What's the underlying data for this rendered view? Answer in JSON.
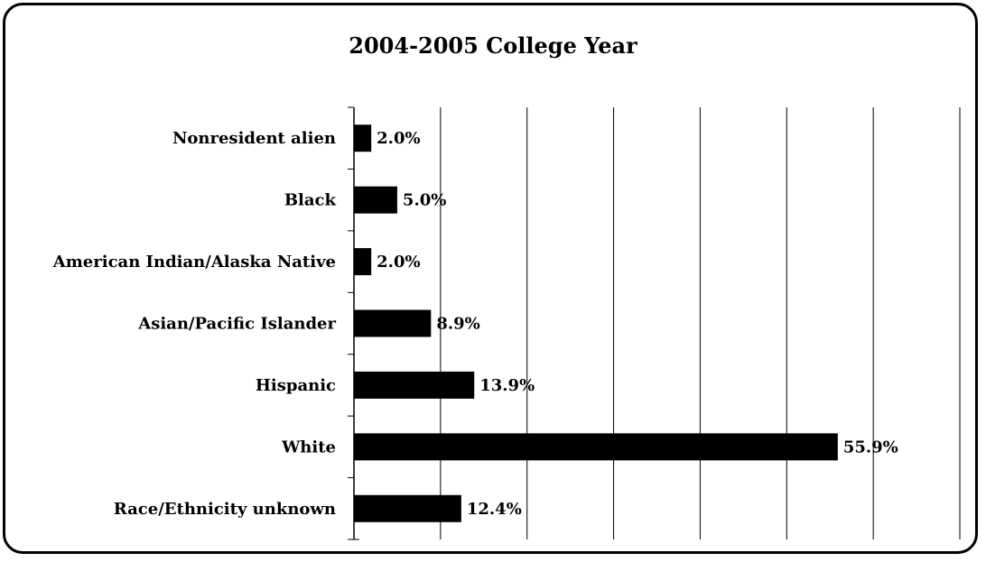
{
  "chart_data": {
    "type": "bar",
    "orientation": "horizontal",
    "title": "2004-2005 College Year",
    "categories": [
      "Nonresident alien",
      "Black",
      "American Indian/Alaska Native",
      "Asian/Pacific Islander",
      "Hispanic",
      "White",
      "Race/Ethnicity unknown"
    ],
    "values": [
      2.0,
      5.0,
      2.0,
      8.9,
      13.9,
      55.9,
      12.4
    ],
    "value_labels": [
      "2.0%",
      "5.0%",
      "2.0%",
      "8.9%",
      "13.9%",
      "55.9%",
      "12.4%"
    ],
    "xlim": [
      0,
      70
    ],
    "grid": "vertical",
    "xlabel": "",
    "ylabel": "",
    "bar_color": "#000000"
  }
}
